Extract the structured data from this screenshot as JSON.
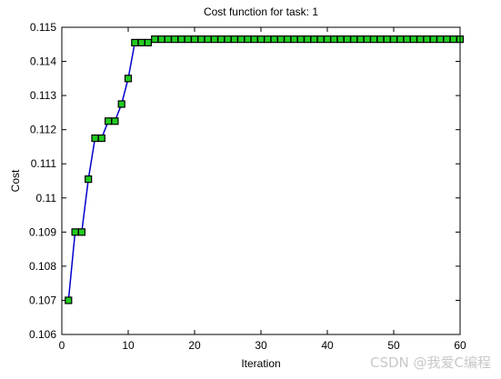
{
  "chart_data": {
    "type": "line",
    "title": "Cost function for task: 1",
    "xlabel": "Iteration",
    "ylabel": "Cost",
    "xlim": [
      0,
      60
    ],
    "ylim": [
      0.106,
      0.115
    ],
    "xticks": [
      0,
      10,
      20,
      30,
      40,
      50,
      60
    ],
    "xtick_labels": [
      "0",
      "10",
      "20",
      "30",
      "40",
      "50",
      "60"
    ],
    "yticks": [
      0.106,
      0.107,
      0.108,
      0.109,
      0.11,
      0.111,
      0.112,
      0.113,
      0.114,
      0.115
    ],
    "ytick_labels": [
      "0.106",
      "0.107",
      "0.108",
      "0.109",
      "0.11",
      "0.111",
      "0.112",
      "0.113",
      "0.114",
      "0.115"
    ],
    "grid": false,
    "legend": null,
    "series": [
      {
        "line_color": "#0000cc",
        "marker": "square",
        "marker_face_color": "#22cc22",
        "marker_edge_color": "#000000",
        "x": [
          1,
          2,
          3,
          4,
          5,
          6,
          7,
          8,
          9,
          10,
          11,
          12,
          13,
          14,
          15,
          16,
          17,
          18,
          19,
          20,
          21,
          22,
          23,
          24,
          25,
          26,
          27,
          28,
          29,
          30,
          31,
          32,
          33,
          34,
          35,
          36,
          37,
          38,
          39,
          40,
          41,
          42,
          43,
          44,
          45,
          46,
          47,
          48,
          49,
          50,
          51,
          52,
          53,
          54,
          55,
          56,
          57,
          58,
          59,
          60
        ],
        "y": [
          0.107,
          0.109,
          0.109,
          0.11055,
          0.11175,
          0.11175,
          0.11225,
          0.11225,
          0.11275,
          0.1135,
          0.11455,
          0.11455,
          0.11455,
          0.11465,
          0.11465,
          0.11465,
          0.11465,
          0.11465,
          0.11465,
          0.11465,
          0.11465,
          0.11465,
          0.11465,
          0.11465,
          0.11465,
          0.11465,
          0.11465,
          0.11465,
          0.11465,
          0.11465,
          0.11465,
          0.11465,
          0.11465,
          0.11465,
          0.11465,
          0.11465,
          0.11465,
          0.11465,
          0.11465,
          0.11465,
          0.11465,
          0.11465,
          0.11465,
          0.11465,
          0.11465,
          0.11465,
          0.11465,
          0.11465,
          0.11465,
          0.11465,
          0.11465,
          0.11465,
          0.11465,
          0.11465,
          0.11465,
          0.11465,
          0.11465,
          0.11465,
          0.11465,
          0.11465
        ]
      }
    ]
  },
  "watermark": {
    "text": "CSDN @我爱C编程"
  }
}
